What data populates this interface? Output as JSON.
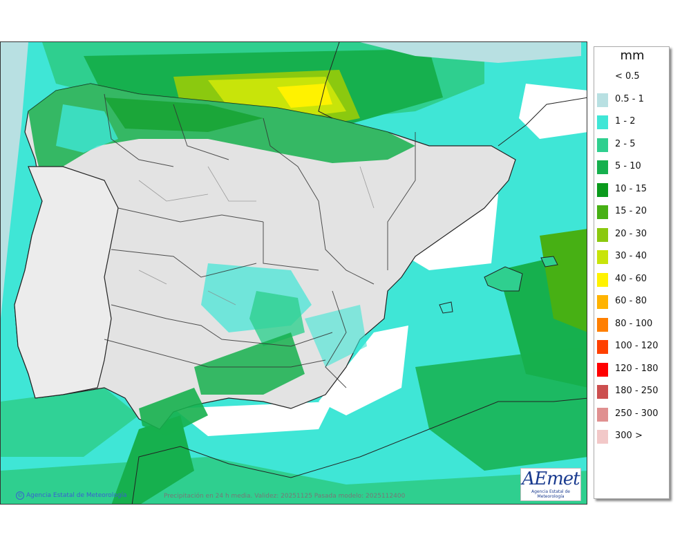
{
  "map": {
    "credit": "Agencia Estatal de Meteorología",
    "validity": "Precipitación en 24 h media. Validez: 20251125 Pasada modelo: 2025112400",
    "logo_main": "AEmet",
    "logo_sub": "Agencia Estatal de Meteorología"
  },
  "legend": {
    "title": "mm",
    "items": [
      {
        "label": "< 0.5",
        "color": "#ffffff"
      },
      {
        "label": "0.5 - 1",
        "color": "#b8e0e2"
      },
      {
        "label": "1 - 2",
        "color": "#3fe6d6"
      },
      {
        "label": "2 - 5",
        "color": "#2fcf8f"
      },
      {
        "label": "5 - 10",
        "color": "#16b04e"
      },
      {
        "label": "10 - 15",
        "color": "#0a9a1c"
      },
      {
        "label": "15 - 20",
        "color": "#47b014"
      },
      {
        "label": "20 - 30",
        "color": "#8bc90f"
      },
      {
        "label": "30 - 40",
        "color": "#c8e40a"
      },
      {
        "label": "40 - 60",
        "color": "#fff200"
      },
      {
        "label": "60 - 80",
        "color": "#ffb300"
      },
      {
        "label": "80 - 100",
        "color": "#ff7f00"
      },
      {
        "label": "100 - 120",
        "color": "#ff4000"
      },
      {
        "label": "120 - 180",
        "color": "#ff0000"
      },
      {
        "label": "180 - 250",
        "color": "#cc4f4f"
      },
      {
        "label": "250 - 300",
        "color": "#e09090"
      },
      {
        "label": "300 >",
        "color": "#f2c8c8"
      }
    ]
  }
}
